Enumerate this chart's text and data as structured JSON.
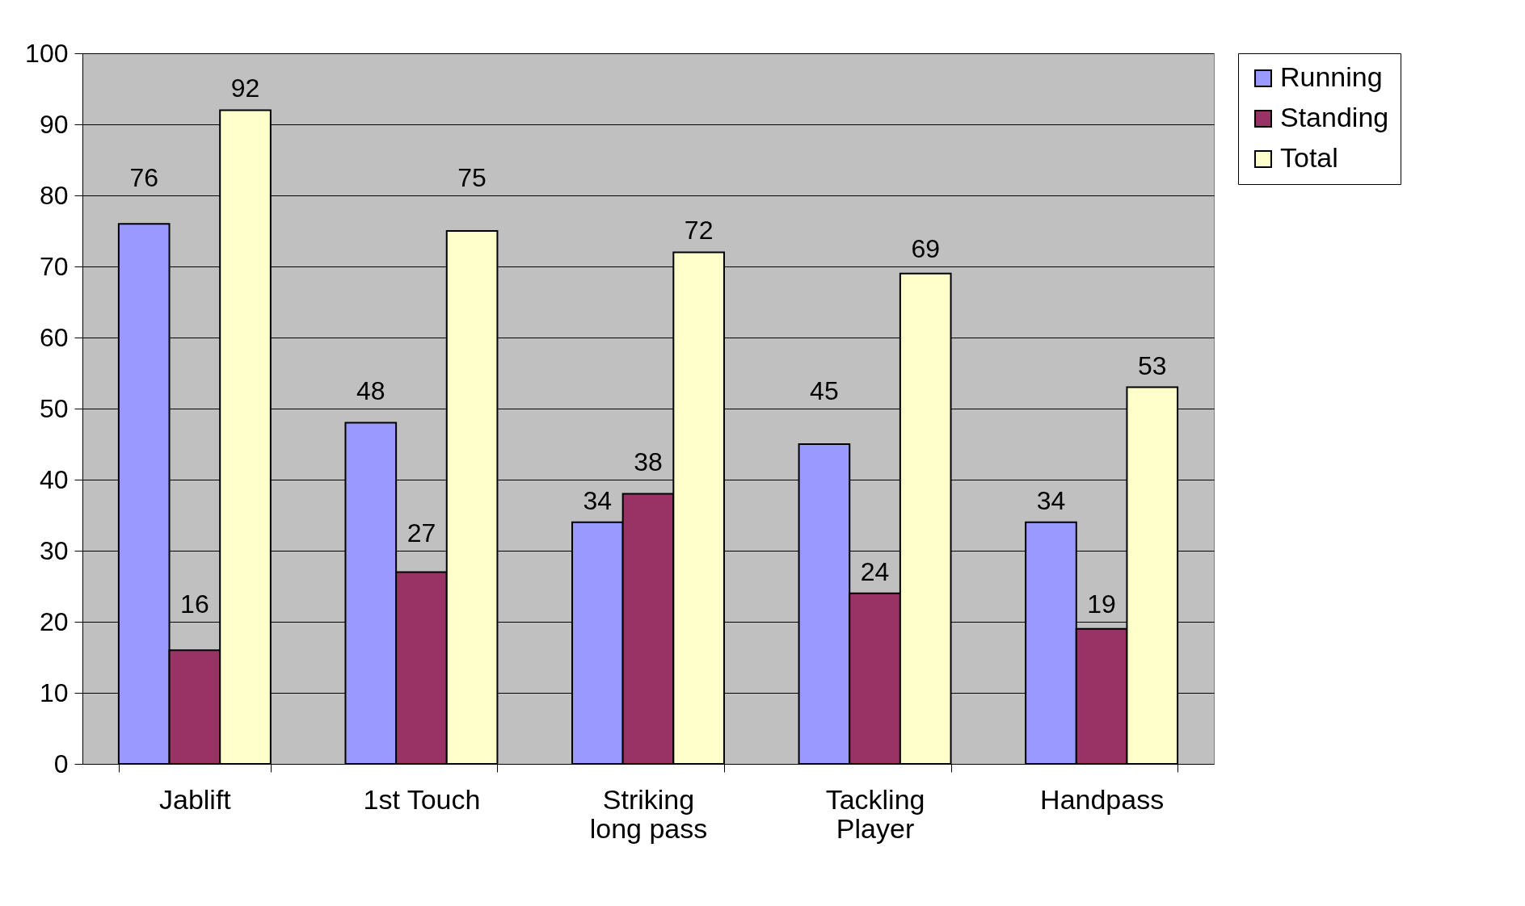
{
  "chart_data": {
    "type": "bar",
    "categories": [
      "Jablift",
      "1st Touch",
      "Striking long pass",
      "Tackling Player",
      "Handpass"
    ],
    "series": [
      {
        "name": "Running",
        "color": "#9999ff",
        "values": [
          76,
          48,
          34,
          45,
          34
        ]
      },
      {
        "name": "Standing",
        "color": "#993366",
        "values": [
          16,
          27,
          38,
          24,
          19
        ]
      },
      {
        "name": "Total",
        "color": "#ffffcc",
        "values": [
          92,
          75,
          72,
          69,
          53
        ]
      }
    ],
    "ylim": [
      0,
      100
    ],
    "yticks": [
      0,
      10,
      20,
      30,
      40,
      50,
      60,
      70,
      80,
      90,
      100
    ],
    "grid": "y",
    "legend": "right",
    "data_labels": true
  }
}
